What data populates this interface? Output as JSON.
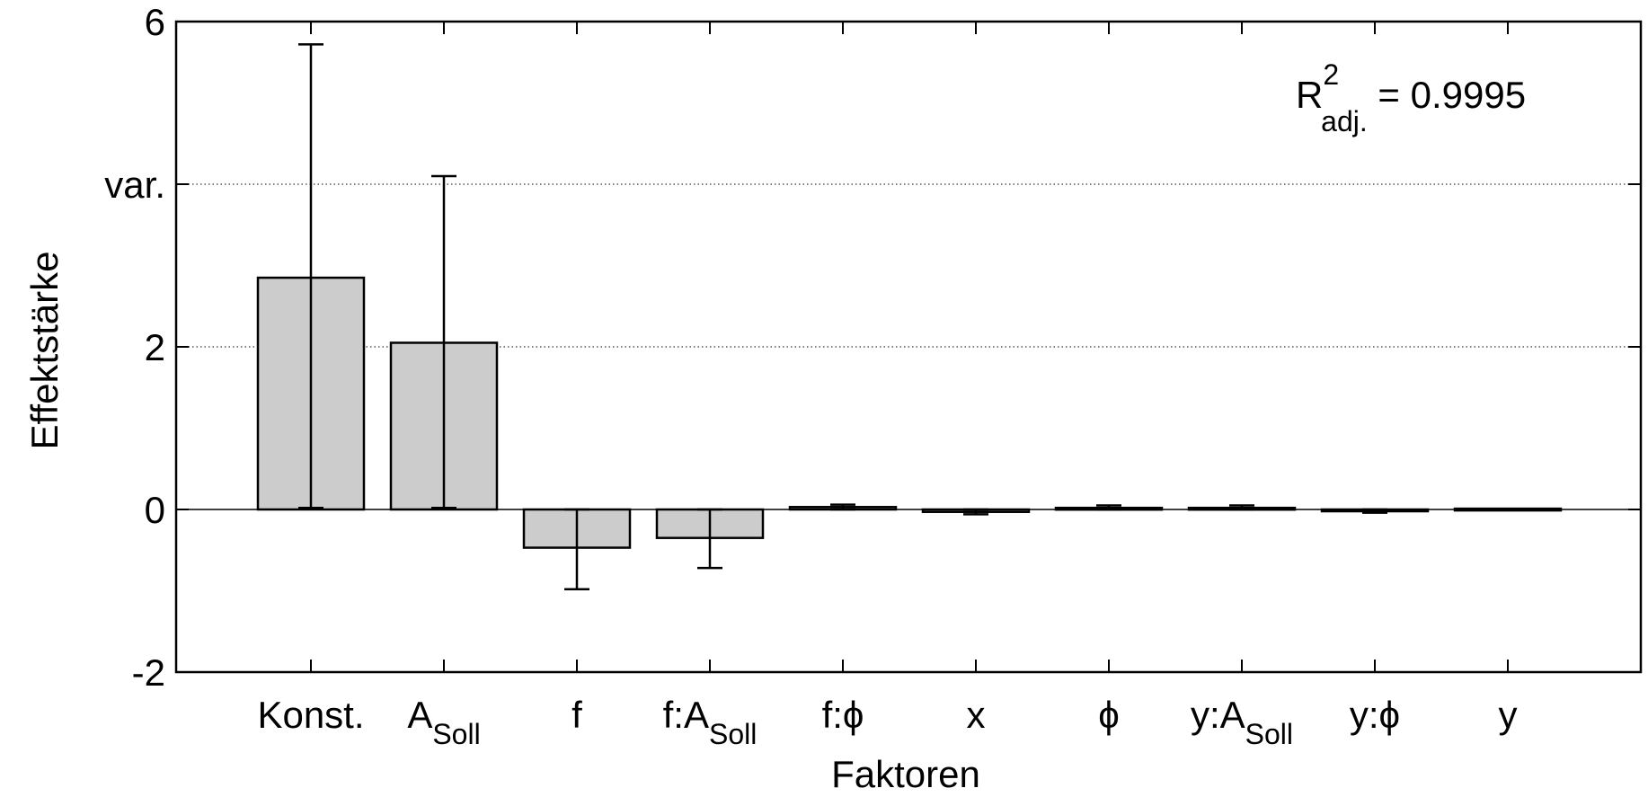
{
  "chart_data": {
    "type": "bar",
    "xlabel": "Faktoren",
    "ylabel": "Effektstärke",
    "ylim": [
      -2,
      6
    ],
    "grid": "horizontal-dotted",
    "yticks": [
      {
        "value": -2,
        "label": "-2"
      },
      {
        "value": 0,
        "label": "0"
      },
      {
        "value": 2,
        "label": "2"
      },
      {
        "value": 4,
        "label": "var."
      },
      {
        "value": 6,
        "label": "6"
      }
    ],
    "categories": [
      {
        "main": "Konst.",
        "sub": ""
      },
      {
        "main": "A",
        "sub": "Soll"
      },
      {
        "main": "f",
        "sub": ""
      },
      {
        "main": "f:A",
        "sub": "Soll"
      },
      {
        "main": "f:ϕ",
        "sub": ""
      },
      {
        "main": "x",
        "sub": ""
      },
      {
        "main": "ϕ",
        "sub": ""
      },
      {
        "main": "y:A",
        "sub": "Soll"
      },
      {
        "main": "y:ϕ",
        "sub": ""
      },
      {
        "main": "y",
        "sub": ""
      }
    ],
    "values": [
      2.85,
      2.05,
      -0.47,
      -0.35,
      0.03,
      -0.03,
      0.02,
      0.02,
      -0.02,
      0.01
    ],
    "error_low": [
      0.02,
      0.02,
      -0.98,
      -0.72,
      0.0,
      -0.06,
      0.0,
      0.0,
      -0.04,
      0.0
    ],
    "error_high": [
      5.72,
      4.1,
      0.0,
      0.0,
      0.06,
      0.0,
      0.05,
      0.05,
      0.0,
      0.02
    ],
    "bar_color": "#cccccc",
    "annotation": {
      "prefix": "R",
      "sup": "2",
      "sub": "adj.",
      "suffix": " = 0.9995"
    }
  }
}
